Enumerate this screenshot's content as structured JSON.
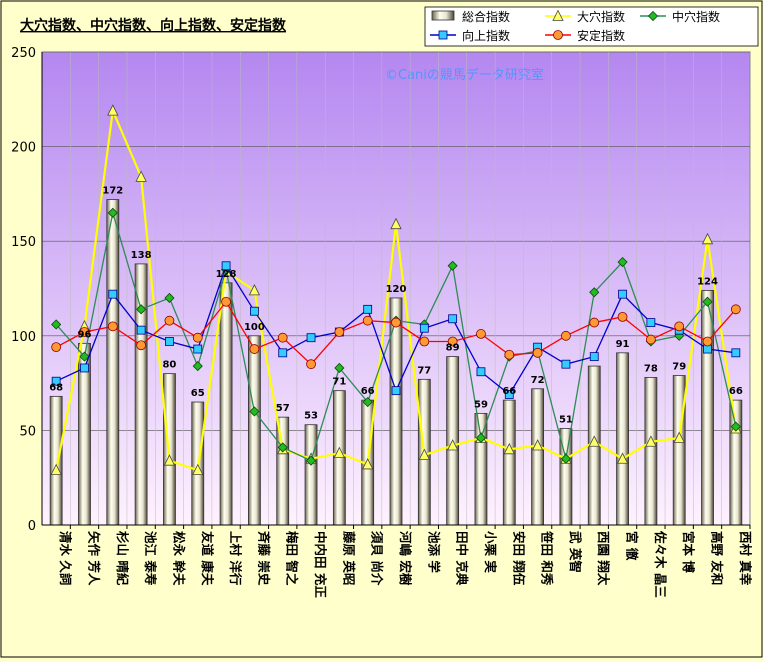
{
  "chart_data": {
    "type": "bar",
    "title": "大穴指数、中穴指数、向上指数、安定指数",
    "watermark": "©Caniの競馬データ研究室",
    "ylim": [
      0,
      250
    ],
    "yticks": [
      "0",
      "50",
      "100",
      "150",
      "200",
      "250"
    ],
    "grid": true,
    "legend_position": "top-right",
    "categories": [
      "清水 久詞",
      "矢作 芳人",
      "杉山 晴紀",
      "池江 泰寿",
      "松永 幹夫",
      "友道 康夫",
      "上村 洋行",
      "斉藤 崇史",
      "梅田 智之",
      "中内田 充正",
      "藤原 英昭",
      "須貝 尚介",
      "河嶋 宏樹",
      "池添 学",
      "田中 克典",
      "小栗 実",
      "安田 翔伍",
      "笹田 和秀",
      "武 英智",
      "西園 翔太",
      "宮 徹",
      "佐々木 晶三",
      "宮本 博",
      "高野 友和",
      "西村 真幸"
    ],
    "series": [
      {
        "name": "総合指数",
        "kind": "bar",
        "color": "#e0dcc8",
        "values": [
          68,
          96,
          172,
          138,
          80,
          65,
          128,
          100,
          57,
          53,
          71,
          66,
          120,
          77,
          89,
          59,
          66,
          72,
          51,
          84,
          91,
          78,
          79,
          124,
          66
        ],
        "labels": [
          "68",
          "96",
          "172",
          "138",
          "80",
          "65",
          "128",
          "100",
          "57",
          "53",
          "71",
          "66",
          "120",
          "77",
          "89",
          "59",
          "66",
          "72",
          "51",
          "",
          "91",
          "78",
          "79",
          "124",
          "66"
        ]
      },
      {
        "name": "大穴指数",
        "kind": "line",
        "marker": "triangle",
        "color": "#ffff00",
        "marker_fill": "#ffff66",
        "values": [
          29,
          105,
          219,
          184,
          34,
          29,
          134,
          124,
          40,
          35,
          38,
          32,
          159,
          37,
          42,
          46,
          40,
          42,
          35,
          44,
          35,
          44,
          46,
          151,
          51
        ]
      },
      {
        "name": "中穴指数",
        "kind": "line",
        "marker": "diamond",
        "color": "#2e8b57",
        "marker_fill": "#22bb22",
        "values": [
          106,
          89,
          165,
          114,
          120,
          84,
          135,
          60,
          41,
          34,
          83,
          65,
          108,
          106,
          137,
          46,
          89,
          92,
          35,
          123,
          139,
          97,
          100,
          118,
          52
        ]
      },
      {
        "name": "向上指数",
        "kind": "line",
        "marker": "square",
        "color": "#0000cc",
        "marker_fill": "#33ccff",
        "values": [
          76,
          83,
          122,
          103,
          97,
          93,
          137,
          113,
          91,
          99,
          102,
          114,
          71,
          104,
          109,
          81,
          69,
          94,
          85,
          89,
          122,
          107,
          103,
          93,
          91
        ]
      },
      {
        "name": "安定指数",
        "kind": "line",
        "marker": "circle",
        "color": "#ff0000",
        "marker_fill": "#ff9933",
        "values": [
          94,
          102,
          105,
          95,
          108,
          99,
          118,
          93,
          99,
          85,
          102,
          108,
          107,
          97,
          97,
          101,
          90,
          91,
          100,
          107,
          110,
          98,
          105,
          97,
          114
        ]
      }
    ]
  }
}
